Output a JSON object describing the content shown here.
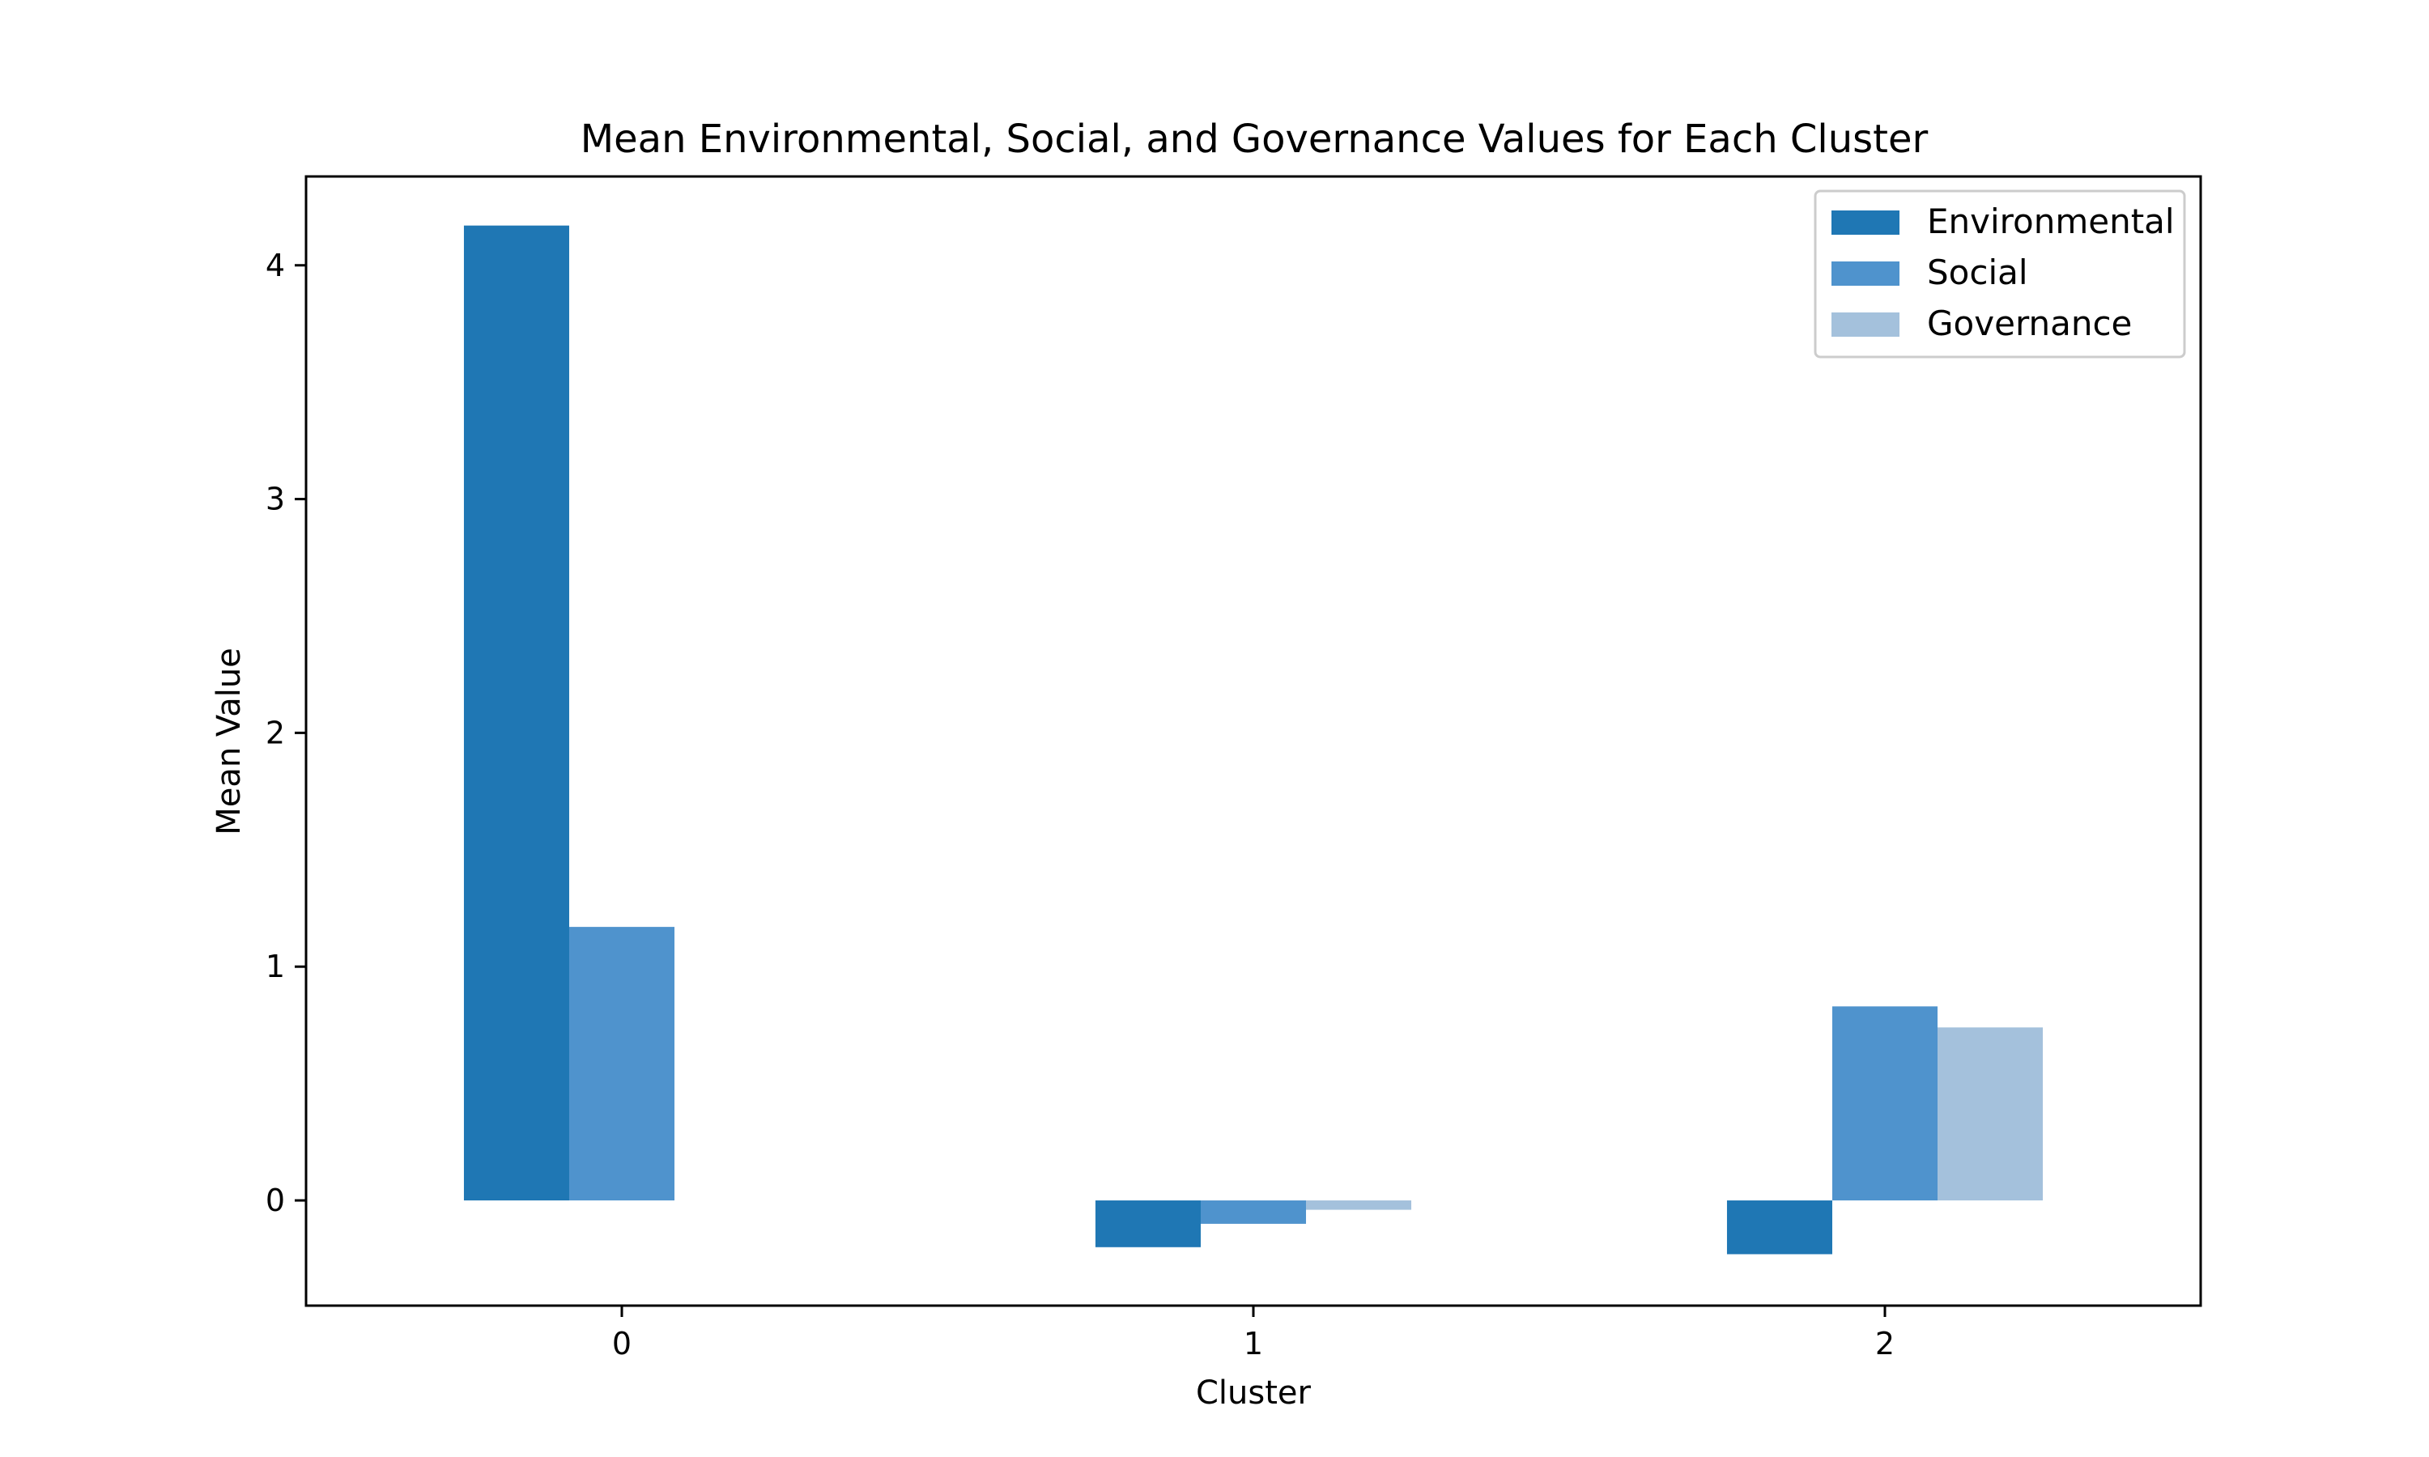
{
  "chart_data": {
    "type": "bar",
    "title": "Mean Environmental, Social, and Governance Values for Each Cluster",
    "xlabel": "Cluster",
    "ylabel": "Mean Value",
    "categories": [
      "0",
      "1",
      "2"
    ],
    "series": [
      {
        "name": "Environmental",
        "color": "#1f77b4",
        "values": [
          4.17,
          -0.2,
          -0.23
        ]
      },
      {
        "name": "Social",
        "color": "#4f93cd",
        "values": [
          1.17,
          -0.1,
          0.83
        ]
      },
      {
        "name": "Governance",
        "color": "#a4c1dc",
        "values": [
          0.0,
          -0.04,
          0.74
        ]
      }
    ],
    "ylim": [
      -0.45,
      4.38
    ],
    "yticks": [
      0,
      1,
      2,
      3,
      4
    ],
    "grid": false,
    "legend_position": "top-right"
  }
}
